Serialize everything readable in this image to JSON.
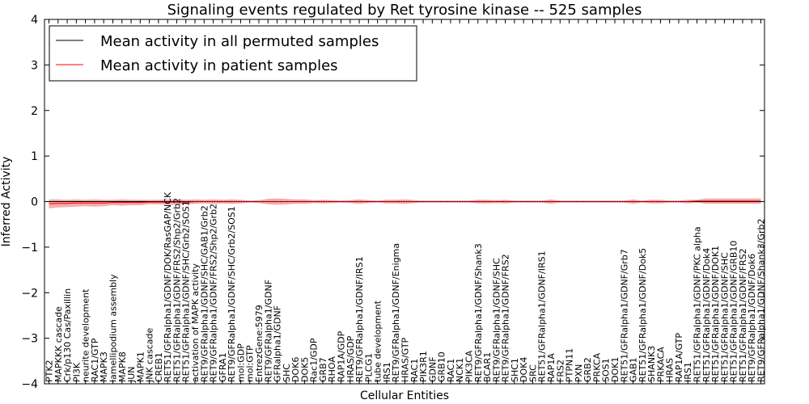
{
  "chart_data": {
    "type": "line",
    "title": "Signaling events regulated by Ret tyrosine kinase -- 525 samples",
    "xlabel": "Cellular Entities",
    "ylabel": "Inferred Activity",
    "ylim": [
      -4,
      4
    ],
    "yticks": [
      -4,
      -3,
      -2,
      -1,
      0,
      1,
      2,
      3,
      4
    ],
    "grid": false,
    "legend_position": "top-left",
    "categories": [
      "PTK2",
      "MAPKKK cascade",
      "Crk/p130 Cas/Paxillin",
      "PI3K",
      "neurite development",
      "RAC1/GTP",
      "MAPK3",
      "lamellipodium assembly",
      "MAPK8",
      "JUN",
      "MAPK1",
      "JNK cascade",
      "CREB1",
      "RET51/GFRalpha1/GDNF/DOK/RasGAP/NCK",
      "RET51/GFRalpha1/GDNF/FRS2/Shp2/Grb2",
      "RET51/GFRalpha1/GDNF/SHC/Grb2/SOS1",
      "activation of MAPK activity",
      "RET9/GFRalpha1/GDNF/SHC/GAB1/Grb2",
      "RET9/GFRalpha1/GDNF/FRS2/Shp2/Grb2",
      "GFRA1",
      "RET9/GFRalpha1/GDNF/SHC/Grb2/SOS1",
      "mol:GDP",
      "mol:GTP",
      "EntrezGene:5979",
      "RET9/GFRalpha1/GDNF",
      "GFRalpha1/GDNF",
      "SHC",
      "DOK6",
      "DOK5",
      "Rac1/GDP",
      "GRB7",
      "RHOA",
      "RAP1A/GDP",
      "HRAS/GDP",
      "RET9/GFRalpha1/GDNF/IRS1",
      "PLCG1",
      "tube development",
      "IRS1",
      "RET9/GFRalpha1/GDNF/Enigma",
      "HRAS/GTP",
      "RAC1",
      "PIK3R1",
      "GDNF",
      "GRB10",
      "RAC1",
      "NCK1",
      "PIK3CA",
      "RET9/GFRalpha1/GDNF/Shank3",
      "BCAR1",
      "RET9/GFRalpha1/GDNF/SHC",
      "RET9/GFRalpha1/GDNF/FRS2",
      "SHC1",
      "DOK4",
      "SRC",
      "RET51/GFRalpha1/GDNF/IRS1",
      "RAP1A",
      "FRS2",
      "PTPN11",
      "PXN",
      "GRB2",
      "PRKCA",
      "SOS1",
      "DOK1",
      "RET51/GFRalpha1/GDNF/Grb7",
      "GAB1",
      "RET51/GFRalpha1/GDNF/Dok5",
      "SHANK3",
      "PRKACA",
      "HRAS",
      "RAP1A/GTP",
      "IRS1",
      "RET51/GFRalpha1/GDNF/PKC alpha",
      "RET51/GFRalpha1/GDNF/Dok4",
      "RET51/GFRalpha1/GDNF/DOK1",
      "RET51/GFRalpha1/GDNF/SHC",
      "RET51/GFRalpha1/GDNF/GRB10",
      "RET51/GFRalpha1/GDNF/FRS2",
      "RET9/GFRalpha1/GDNF/Dok6",
      "RET9/GFRalpha1/GDNF/Shank3/Grb2"
    ],
    "series": [
      {
        "name": "Mean activity in all permuted samples",
        "color": "#000000",
        "values": [
          0,
          0,
          0,
          0,
          0,
          0,
          0,
          0,
          0,
          0,
          0,
          0,
          0,
          0,
          0,
          0,
          0,
          0,
          0,
          0,
          0,
          0,
          0,
          0,
          0,
          0,
          0,
          0,
          0,
          0,
          0,
          0,
          0,
          0,
          0,
          0,
          0,
          0,
          0,
          0,
          0,
          0,
          0,
          0,
          0,
          0,
          0,
          0,
          0,
          0,
          0,
          0,
          0,
          0,
          0,
          0,
          0,
          0,
          0,
          0,
          0,
          0,
          0,
          0,
          0,
          0,
          0,
          0,
          0,
          0,
          0,
          0,
          0,
          0,
          0,
          0,
          0,
          0,
          0
        ]
      },
      {
        "name": "Mean activity in patient samples",
        "color": "#ff0000",
        "band_color": "#f08080",
        "values": [
          -0.05,
          -0.04,
          -0.04,
          -0.03,
          -0.03,
          -0.03,
          -0.03,
          -0.02,
          -0.02,
          -0.02,
          -0.02,
          -0.01,
          -0.01,
          -0.01,
          -0.01,
          -0.01,
          0,
          0,
          0,
          0,
          0,
          0,
          0,
          0,
          0,
          0,
          0,
          0,
          0,
          0,
          0,
          0,
          0,
          0,
          0,
          0,
          0,
          0,
          0,
          0,
          0,
          0,
          0,
          0,
          0,
          0,
          0,
          0,
          0,
          0,
          0,
          0,
          0,
          0,
          0,
          0,
          0,
          0,
          0,
          0,
          0,
          0,
          0,
          0,
          0,
          0,
          0,
          0,
          0,
          0,
          0,
          0.01,
          0.01,
          0.01,
          0.01,
          0.01,
          0.01,
          0.01,
          0.01
        ],
        "band_halfwidth": [
          0.1,
          0.09,
          0.08,
          0.08,
          0.07,
          0.08,
          0.07,
          0.06,
          0.07,
          0.06,
          0.06,
          0.05,
          0.05,
          0.06,
          0.06,
          0.05,
          0.05,
          0.04,
          0.05,
          0.04,
          0.05,
          0.04,
          0.02,
          0.03,
          0.06,
          0.07,
          0.06,
          0.05,
          0.05,
          0.03,
          0.04,
          0.03,
          0.02,
          0.03,
          0.05,
          0.03,
          0.02,
          0.04,
          0.04,
          0.05,
          0.03,
          0.02,
          0.02,
          0.02,
          0.02,
          0.02,
          0.02,
          0.04,
          0.04,
          0.03,
          0.04,
          0.02,
          0.02,
          0.02,
          0.02,
          0.05,
          0.02,
          0.02,
          0.02,
          0.02,
          0.02,
          0.02,
          0.02,
          0.02,
          0.05,
          0.02,
          0.04,
          0.04,
          0.02,
          0.02,
          0.04,
          0.03,
          0.06,
          0.06,
          0.06,
          0.06,
          0.06,
          0.06,
          0.06
        ]
      }
    ]
  }
}
